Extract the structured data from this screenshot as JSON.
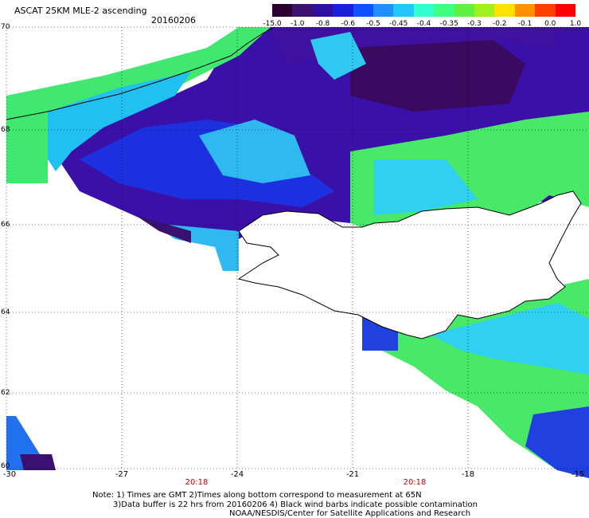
{
  "header": {
    "title": "ASCAT 25KM MLE-2 ascending",
    "date": "20160206"
  },
  "colorbar": {
    "labels": [
      "-15.0",
      "-1.0",
      "-0.8",
      "-0.6",
      "-0.5",
      "-0.45",
      "-0.4",
      "-0.35",
      "-0.3",
      "-0.2",
      "-0.1",
      "0.0",
      "1.0"
    ],
    "colors": [
      "#2a0030",
      "#3a1070",
      "#3010a0",
      "#1a20d8",
      "#1050ff",
      "#2090ff",
      "#20c8ff",
      "#30ffd0",
      "#40ff80",
      "#60f040",
      "#a0f020",
      "#ffe000",
      "#ff9000",
      "#ff4000",
      "#ff0000"
    ]
  },
  "axes": {
    "lat_labels": [
      "70",
      "68",
      "66",
      "64",
      "62",
      "60"
    ],
    "lon_labels": [
      "-30",
      "-27",
      "-24",
      "-21",
      "-18",
      "-15"
    ]
  },
  "pass_times": [
    "20:18",
    "20:18"
  ],
  "notes": {
    "line1": "Note: 1) Times are GMT 2)Times along bottom correspond to measurement at 65N",
    "line2": "3)Data buffer is 22 hrs from 20160206 4) Black wind barbs indicate possible contamination",
    "line3": "NOAA/NESDIS/Center for Satellite Applications and Research"
  }
}
